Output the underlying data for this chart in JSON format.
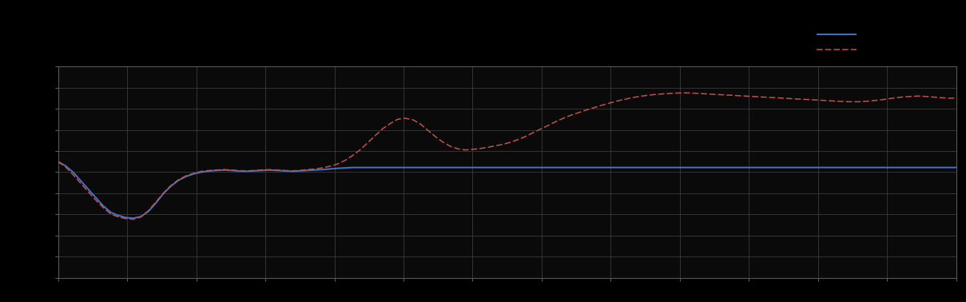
{
  "background_color": "#000000",
  "plot_bg_color": "#0a0a0a",
  "grid_color": "#3a3a3a",
  "line1_color": "#4472c4",
  "line2_color": "#c0504d",
  "line1_lw": 1.4,
  "line2_lw": 1.1,
  "xlim": [
    0,
    119
  ],
  "ylim": [
    0,
    10
  ],
  "legend_line1_x": [
    0.845,
    0.887
  ],
  "legend_line1_y": [
    0.885,
    0.885
  ],
  "legend_line2_x": [
    0.845,
    0.887
  ],
  "legend_line2_y": [
    0.835,
    0.835
  ],
  "blue": [
    5.5,
    5.3,
    5.0,
    4.6,
    4.2,
    3.8,
    3.4,
    3.1,
    2.95,
    2.85,
    2.82,
    2.9,
    3.15,
    3.55,
    4.0,
    4.35,
    4.62,
    4.8,
    4.92,
    5.0,
    5.05,
    5.08,
    5.1,
    5.08,
    5.05,
    5.04,
    5.06,
    5.08,
    5.1,
    5.08,
    5.06,
    5.04,
    5.06,
    5.08,
    5.1,
    5.12,
    5.15,
    5.18,
    5.2,
    5.22,
    5.22,
    5.22,
    5.22,
    5.22,
    5.22,
    5.22,
    5.22,
    5.22,
    5.22,
    5.22,
    5.22,
    5.22,
    5.22,
    5.22,
    5.22,
    5.22,
    5.22,
    5.22,
    5.22,
    5.22,
    5.22,
    5.22,
    5.22,
    5.22,
    5.22,
    5.22,
    5.22,
    5.22,
    5.22,
    5.22,
    5.22,
    5.22,
    5.22,
    5.22,
    5.22,
    5.22,
    5.22,
    5.22,
    5.22,
    5.22,
    5.22,
    5.22,
    5.22,
    5.22,
    5.22,
    5.22,
    5.22,
    5.22,
    5.22,
    5.22,
    5.22,
    5.22,
    5.22,
    5.22,
    5.22,
    5.22,
    5.22,
    5.22,
    5.22,
    5.22,
    5.22,
    5.22,
    5.22,
    5.22,
    5.22,
    5.22,
    5.22,
    5.22,
    5.22,
    5.22,
    5.22,
    5.22,
    5.22,
    5.22,
    5.22,
    5.22,
    5.22,
    5.22,
    5.22,
    5.22
  ],
  "red": [
    5.5,
    5.25,
    4.88,
    4.48,
    4.08,
    3.68,
    3.32,
    3.02,
    2.88,
    2.8,
    2.78,
    2.88,
    3.18,
    3.6,
    4.02,
    4.38,
    4.65,
    4.83,
    4.95,
    5.04,
    5.08,
    5.1,
    5.12,
    5.1,
    5.07,
    5.06,
    5.08,
    5.1,
    5.12,
    5.1,
    5.08,
    5.06,
    5.08,
    5.12,
    5.15,
    5.2,
    5.28,
    5.38,
    5.55,
    5.78,
    6.05,
    6.38,
    6.72,
    7.05,
    7.3,
    7.5,
    7.55,
    7.48,
    7.28,
    6.98,
    6.68,
    6.42,
    6.22,
    6.1,
    6.05,
    6.08,
    6.12,
    6.18,
    6.25,
    6.32,
    6.42,
    6.55,
    6.7,
    6.88,
    7.05,
    7.22,
    7.4,
    7.56,
    7.7,
    7.82,
    7.94,
    8.05,
    8.16,
    8.26,
    8.36,
    8.44,
    8.52,
    8.58,
    8.63,
    8.67,
    8.7,
    8.72,
    8.74,
    8.75,
    8.74,
    8.72,
    8.7,
    8.68,
    8.66,
    8.64,
    8.62,
    8.6,
    8.58,
    8.56,
    8.54,
    8.52,
    8.5,
    8.48,
    8.46,
    8.44,
    8.42,
    8.4,
    8.38,
    8.36,
    8.34,
    8.33,
    8.33,
    8.35,
    8.38,
    8.42,
    8.47,
    8.52,
    8.56,
    8.58,
    8.6,
    8.58,
    8.55,
    8.52,
    8.5,
    8.5
  ]
}
